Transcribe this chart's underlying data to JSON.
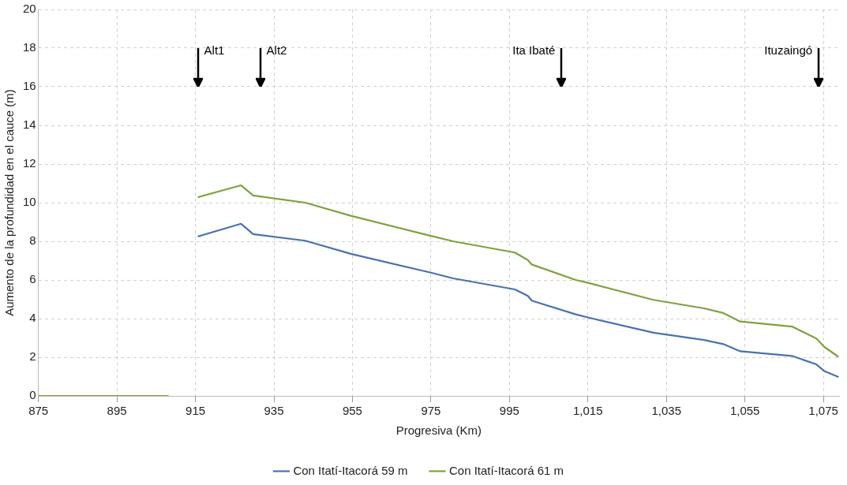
{
  "chart_data": {
    "type": "line",
    "xlabel": "Progresiva (Km)",
    "ylabel": "Aumento de la profundidad en el cauce (m)",
    "xlim": [
      875,
      1079
    ],
    "ylim": [
      0,
      20
    ],
    "xticks": [
      875,
      895,
      915,
      935,
      955,
      975,
      995,
      {
        "value": 1015,
        "label": "1,015"
      },
      {
        "value": 1035,
        "label": "1,035"
      },
      {
        "value": 1055,
        "label": "1,055"
      },
      {
        "value": 1075,
        "label": "1,075"
      }
    ],
    "yticks": [
      0,
      2,
      4,
      6,
      8,
      10,
      12,
      14,
      16,
      18,
      20
    ],
    "grid": true,
    "legend": "bottom",
    "marker": "none",
    "line_style": "solid",
    "series": [
      {
        "name": "Con Itatí-Itacorá 59 m",
        "color": "#4a72b0",
        "x": [
          915.8,
          926.6,
          929.7,
          943,
          954.6,
          974.6,
          980.7,
          996.4,
          999.7,
          1000.7,
          1011.9,
          1015.4,
          1031.7,
          1044.6,
          1049.5,
          1053.8,
          1067,
          1073.2,
          1075.2,
          1078.7
        ],
        "values": [
          8.26,
          8.91,
          8.37,
          8.03,
          7.35,
          6.4,
          6.08,
          5.51,
          5.17,
          4.93,
          4.22,
          4.04,
          3.27,
          2.89,
          2.68,
          2.31,
          2.07,
          1.63,
          1.29,
          0.99
        ]
      },
      {
        "name": "Con Itatí-Itacorá 61 m",
        "color": "#7fa23e",
        "x": [
          875,
          908,
          912,
          915.8,
          926.6,
          929.7,
          943,
          954.6,
          974.6,
          980.7,
          996.4,
          999.7,
          1000.7,
          1011.9,
          1015.4,
          1031.7,
          1044.6,
          1049.5,
          1053.8,
          1067,
          1073.2,
          1075.2,
          1078.7
        ],
        "values": [
          0,
          0,
          null,
          10.29,
          10.9,
          10.37,
          10.0,
          9.32,
          8.3,
          8.0,
          7.42,
          7.03,
          6.8,
          6.0,
          5.83,
          4.97,
          4.53,
          4.29,
          3.85,
          3.59,
          2.97,
          2.54,
          2.04
        ]
      }
    ],
    "ref_lines": [
      {
        "axis": "x",
        "value": 915.6,
        "label": "Alt1"
      },
      {
        "axis": "x",
        "value": 931.5,
        "label": "Alt2"
      },
      {
        "axis": "x",
        "value": 1008.3,
        "label": "Ita Ibaté"
      },
      {
        "axis": "x",
        "value": 1073.8,
        "label": "Ituzaingó"
      }
    ]
  }
}
